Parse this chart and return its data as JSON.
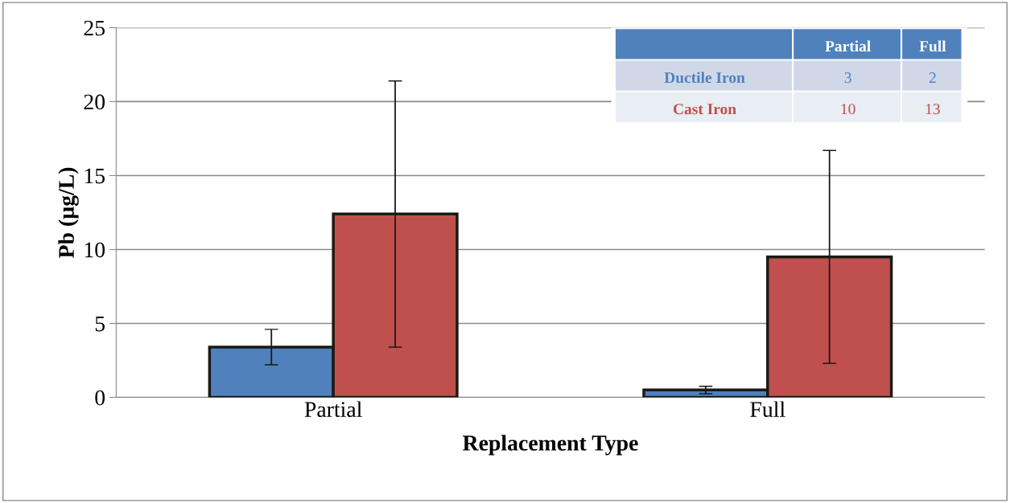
{
  "chart_data": {
    "type": "bar",
    "xlabel": "Replacement Type",
    "ylabel": "Pb (µg/L)",
    "categories": [
      "Partial",
      "Full"
    ],
    "series": [
      {
        "name": "Ductile Iron",
        "color": "#4f81bd",
        "values": [
          3.4,
          0.5
        ],
        "errors": [
          1.2,
          0.25
        ]
      },
      {
        "name": "Cast Iron",
        "color": "#c0504d",
        "values": [
          12.4,
          9.5
        ],
        "errors": [
          9.0,
          7.2
        ]
      }
    ],
    "ylim": [
      0,
      25
    ],
    "yticks": [
      0,
      5,
      10,
      15,
      20,
      25
    ],
    "grid": "y",
    "legend": "top right",
    "annotations": [
      "3",
      "2",
      "10",
      "13"
    ]
  }
}
